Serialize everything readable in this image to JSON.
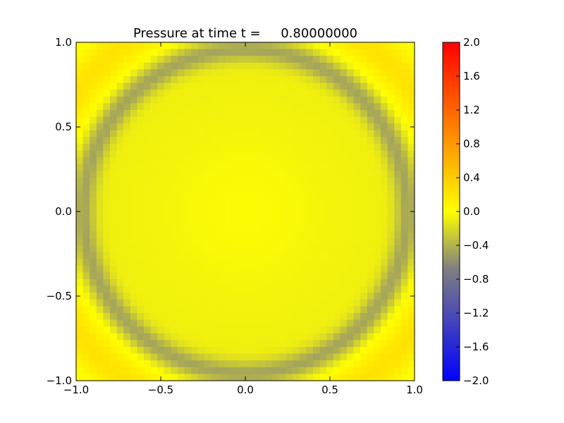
{
  "chart_data": {
    "type": "heatmap",
    "title": "Pressure at time t =     0.80000000",
    "xlabel": "",
    "ylabel": "",
    "xlim": [
      -1.0,
      1.0
    ],
    "ylim": [
      -1.0,
      1.0
    ],
    "x_ticks": [
      "−1.0",
      "−0.5",
      "0.0",
      "0.5",
      "1.0"
    ],
    "x_tick_values": [
      -1.0,
      -0.5,
      0.0,
      0.5,
      1.0
    ],
    "y_ticks": [
      "−1.0",
      "−0.5",
      "0.0",
      "0.5",
      "1.0"
    ],
    "y_tick_values": [
      -1.0,
      -0.5,
      0.0,
      0.5,
      1.0
    ],
    "grid": false,
    "grid_resolution": 50,
    "field": {
      "description_of_pattern": "circular pressure ring",
      "ring_radius": 0.96,
      "ring_width": 0.075,
      "ring_value": -0.48,
      "interior_value": -0.08,
      "interior_center_value": -0.02,
      "outer_peak_value": 0.3,
      "outer_peak_radius": 1.22
    },
    "colorbar": {
      "vmin": -2.0,
      "vmax": 2.0,
      "colors": [
        "#0000ff",
        "#808080",
        "#ffff00",
        "#ff0000"
      ],
      "tick_labels": [
        "2.0",
        "1.6",
        "1.2",
        "0.8",
        "0.4",
        "0.0",
        "−0.4",
        "−0.8",
        "−1.2",
        "−1.6",
        "−2.0"
      ],
      "tick_values": [
        2.0,
        1.6,
        1.2,
        0.8,
        0.4,
        0.0,
        -0.4,
        -0.8,
        -1.2,
        -1.6,
        -2.0
      ]
    }
  }
}
